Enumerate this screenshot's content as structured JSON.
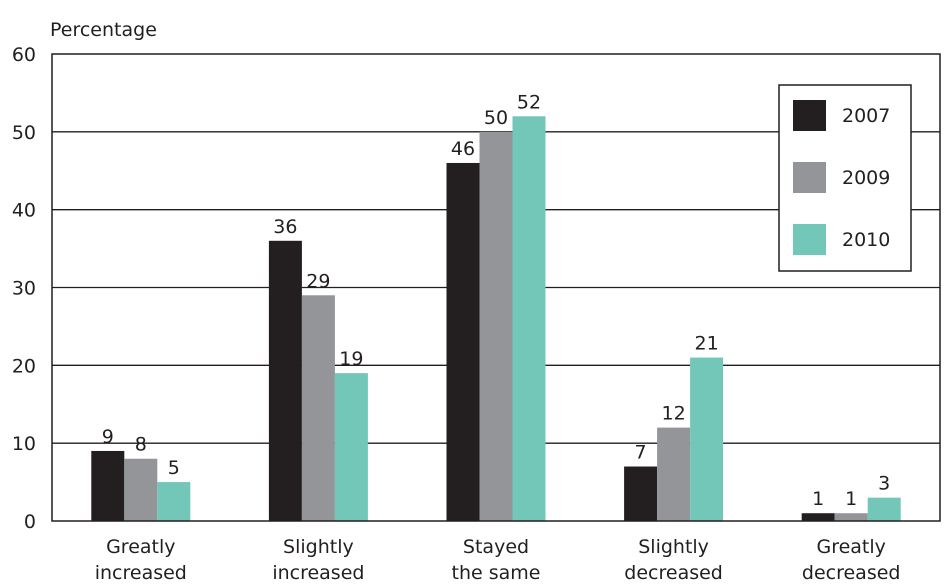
{
  "chart_data": {
    "type": "bar",
    "ylabel": "Percentage",
    "ylim": [
      0,
      60
    ],
    "yticks": [
      0,
      10,
      20,
      30,
      40,
      50,
      60
    ],
    "grid": true,
    "legend_position": "top-right",
    "categories": [
      [
        "Greatly",
        "increased"
      ],
      [
        "Slightly",
        "increased"
      ],
      [
        "Stayed",
        "the same"
      ],
      [
        "Slightly",
        "decreased"
      ],
      [
        "Greatly",
        "decreased"
      ]
    ],
    "series": [
      {
        "name": "2007",
        "color": "#231f20",
        "values": [
          9,
          36,
          46,
          7,
          1
        ]
      },
      {
        "name": "2009",
        "color": "#939598",
        "values": [
          8,
          29,
          50,
          12,
          1
        ]
      },
      {
        "name": "2010",
        "color": "#72c7b9",
        "values": [
          5,
          19,
          52,
          21,
          3
        ]
      }
    ]
  }
}
